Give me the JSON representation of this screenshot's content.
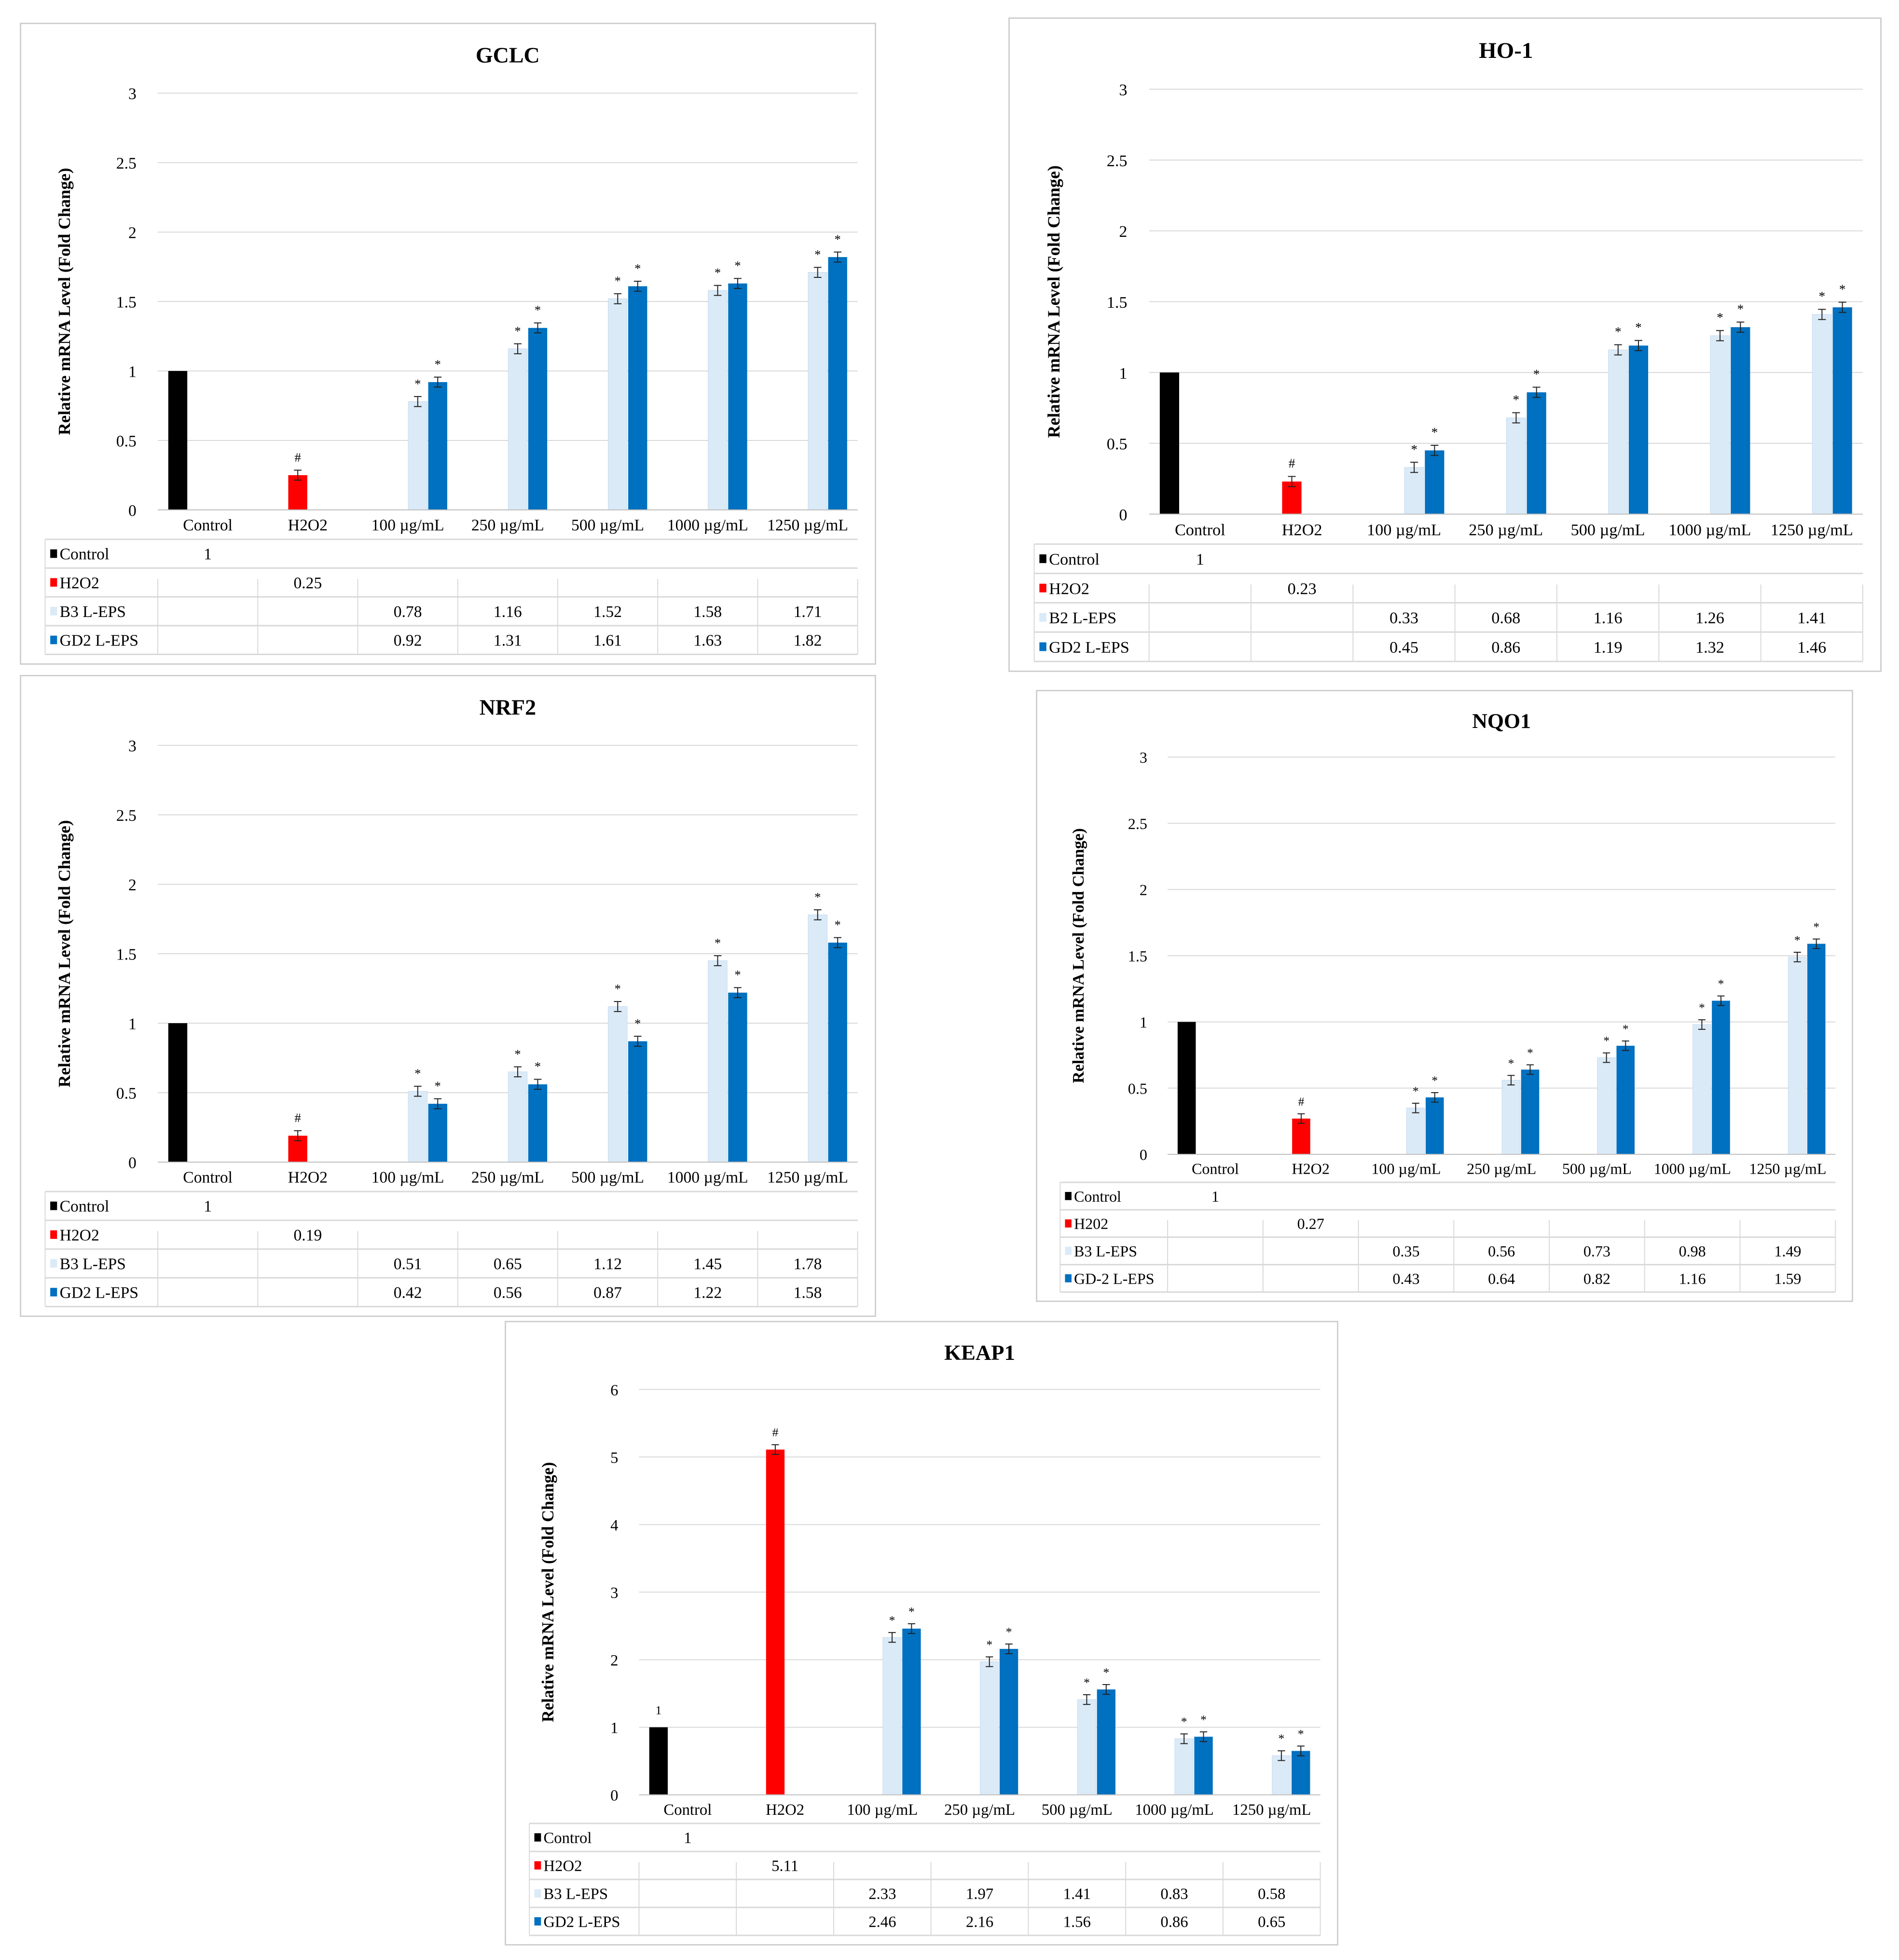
{
  "colors": {
    "control": "#000000",
    "h2o2": "#ff0000",
    "b3": "#dbeaf7",
    "gd2": "#0070c0",
    "grid": "#d9d9d9"
  },
  "chart_data": [
    {
      "type": "bar",
      "title": "GCLC",
      "ylabel": "Relative mRNA Level (Fold Change)",
      "ylim": [
        0,
        3
      ],
      "yticks": [
        "0",
        "0.5",
        "1",
        "1.5",
        "2",
        "2.5",
        "3"
      ],
      "grid": true,
      "legend": "table-bottom",
      "categories": [
        "Control",
        "H2O2",
        "100 µg/mL",
        "250 µg/mL",
        "500 µg/mL",
        "1000 µg/mL",
        "1250 µg/mL"
      ],
      "series": [
        {
          "name": "Control",
          "color": "#000000",
          "values": [
            1,
            null,
            null,
            null,
            null,
            null,
            null
          ],
          "labels": [
            "1",
            "",
            "",
            "",
            "",
            "",
            ""
          ],
          "marks": [
            "",
            "",
            "",
            "",
            "",
            "",
            ""
          ]
        },
        {
          "name": "H2O2",
          "color": "#ff0000",
          "values": [
            null,
            0.25,
            null,
            null,
            null,
            null,
            null
          ],
          "labels": [
            "",
            "0.25",
            "",
            "",
            "",
            "",
            ""
          ],
          "marks": [
            "",
            "#",
            "",
            "",
            "",
            "",
            ""
          ]
        },
        {
          "name": "B3 L-EPS",
          "color": "#dbeaf7",
          "values": [
            null,
            null,
            0.78,
            1.16,
            1.52,
            1.58,
            1.71
          ],
          "labels": [
            "",
            "",
            "0.78",
            "1.16",
            "1.52",
            "1.58",
            "1.71"
          ],
          "marks": [
            "",
            "",
            "*",
            "*",
            "*",
            "*",
            "*"
          ]
        },
        {
          "name": "GD2 L-EPS",
          "color": "#0070c0",
          "values": [
            null,
            null,
            0.92,
            1.31,
            1.61,
            1.63,
            1.82
          ],
          "labels": [
            "",
            "",
            "0.92",
            "1.31",
            "1.61",
            "1.63",
            "1.82"
          ],
          "marks": [
            "",
            "",
            "*",
            "*",
            "*",
            "*",
            "*"
          ]
        }
      ]
    },
    {
      "type": "bar",
      "title": "HO-1",
      "ylabel": "Relative mRNA Level (Fold Change)",
      "ylim": [
        0,
        3
      ],
      "yticks": [
        "0",
        "0.5",
        "1",
        "1.5",
        "2",
        "2.5",
        "3"
      ],
      "grid": true,
      "legend": "table-bottom",
      "categories": [
        "Control",
        "H2O2",
        "100 µg/mL",
        "250 µg/mL",
        "500 µg/mL",
        "1000 µg/mL",
        "1250 µg/mL"
      ],
      "series": [
        {
          "name": "Control",
          "color": "#000000",
          "values": [
            1,
            null,
            null,
            null,
            null,
            null,
            null
          ],
          "labels": [
            "1",
            "",
            "",
            "",
            "",
            "",
            ""
          ],
          "marks": [
            "",
            "",
            "",
            "",
            "",
            "",
            ""
          ]
        },
        {
          "name": "H2O2",
          "color": "#ff0000",
          "values": [
            null,
            0.23,
            null,
            null,
            null,
            null,
            null
          ],
          "labels": [
            "",
            "0.23",
            "",
            "",
            "",
            "",
            ""
          ],
          "marks": [
            "",
            "#",
            "",
            "",
            "",
            "",
            ""
          ]
        },
        {
          "name": "B2 L-EPS",
          "color": "#dbeaf7",
          "values": [
            null,
            null,
            0.33,
            0.68,
            1.16,
            1.26,
            1.41
          ],
          "labels": [
            "",
            "",
            "0.33",
            "0.68",
            "1.16",
            "1.26",
            "1.41"
          ],
          "marks": [
            "",
            "",
            "*",
            "*",
            "*",
            "*",
            "*"
          ]
        },
        {
          "name": "GD2 L-EPS",
          "color": "#0070c0",
          "values": [
            null,
            null,
            0.45,
            0.86,
            1.19,
            1.32,
            1.46
          ],
          "labels": [
            "",
            "",
            "0.45",
            "0.86",
            "1.19",
            "1.32",
            "1.46"
          ],
          "marks": [
            "",
            "",
            "*",
            "*",
            "*",
            "*",
            "*"
          ]
        }
      ]
    },
    {
      "type": "bar",
      "title": "NRF2",
      "ylabel": "Relative mRNA Level (Fold Change)",
      "ylim": [
        0,
        3
      ],
      "yticks": [
        "0",
        "0.5",
        "1",
        "1.5",
        "2",
        "2.5",
        "3"
      ],
      "grid": true,
      "legend": "table-bottom",
      "categories": [
        "Control",
        "H2O2",
        "100 µg/mL",
        "250 µg/mL",
        "500 µg/mL",
        "1000 µg/mL",
        "1250 µg/mL"
      ],
      "series": [
        {
          "name": "Control",
          "color": "#000000",
          "values": [
            1,
            null,
            null,
            null,
            null,
            null,
            null
          ],
          "labels": [
            "1",
            "",
            "",
            "",
            "",
            "",
            ""
          ],
          "marks": [
            "",
            "",
            "",
            "",
            "",
            "",
            ""
          ]
        },
        {
          "name": "H2O2",
          "color": "#ff0000",
          "values": [
            null,
            0.19,
            null,
            null,
            null,
            null,
            null
          ],
          "labels": [
            "",
            "0.19",
            "",
            "",
            "",
            "",
            ""
          ],
          "marks": [
            "",
            "#",
            "",
            "",
            "",
            "",
            ""
          ]
        },
        {
          "name": "B3 L-EPS",
          "color": "#dbeaf7",
          "values": [
            null,
            null,
            0.51,
            0.65,
            1.12,
            1.45,
            1.78
          ],
          "labels": [
            "",
            "",
            "0.51",
            "0.65",
            "1.12",
            "1.45",
            "1.78"
          ],
          "marks": [
            "",
            "",
            "*",
            "*",
            "*",
            "*",
            "*"
          ]
        },
        {
          "name": "GD2 L-EPS",
          "color": "#0070c0",
          "values": [
            null,
            null,
            0.42,
            0.56,
            0.87,
            1.22,
            1.58
          ],
          "labels": [
            "",
            "",
            "0.42",
            "0.56",
            "0.87",
            "1.22",
            "1.58"
          ],
          "marks": [
            "",
            "",
            "*",
            "*",
            "*",
            "*",
            "*"
          ]
        }
      ]
    },
    {
      "type": "bar",
      "title": "NQO1",
      "ylabel": "Relative mRNA Level (Fold Change)",
      "ylim": [
        0,
        3
      ],
      "yticks": [
        "0",
        "0.5",
        "1",
        "1.5",
        "2",
        "2.5",
        "3"
      ],
      "grid": true,
      "legend": "table-bottom",
      "categories": [
        "Control",
        "H2O2",
        "100 µg/mL",
        "250 µg/mL",
        "500 µg/mL",
        "1000 µg/mL",
        "1250 µg/mL"
      ],
      "series": [
        {
          "name": "Control",
          "color": "#000000",
          "values": [
            1,
            null,
            null,
            null,
            null,
            null,
            null
          ],
          "labels": [
            "1",
            "",
            "",
            "",
            "",
            "",
            ""
          ],
          "marks": [
            "",
            "",
            "",
            "",
            "",
            "",
            ""
          ]
        },
        {
          "name": "H202",
          "color": "#ff0000",
          "values": [
            null,
            0.27,
            null,
            null,
            null,
            null,
            null
          ],
          "labels": [
            "",
            "0.27",
            "",
            "",
            "",
            "",
            ""
          ],
          "marks": [
            "",
            "#",
            "",
            "",
            "",
            "",
            ""
          ]
        },
        {
          "name": "B3 L-EPS",
          "color": "#dbeaf7",
          "values": [
            null,
            null,
            0.35,
            0.56,
            0.73,
            0.98,
            1.49
          ],
          "labels": [
            "",
            "",
            "0.35",
            "0.56",
            "0.73",
            "0.98",
            "1.49"
          ],
          "marks": [
            "",
            "",
            "*",
            "*",
            "*",
            "*",
            "*"
          ]
        },
        {
          "name": "GD-2 L-EPS",
          "color": "#0070c0",
          "values": [
            null,
            null,
            0.43,
            0.64,
            0.82,
            1.16,
            1.59
          ],
          "labels": [
            "",
            "",
            "0.43",
            "0.64",
            "0.82",
            "1.16",
            "1.59"
          ],
          "marks": [
            "",
            "",
            "*",
            "*",
            "*",
            "*",
            "*"
          ]
        }
      ]
    },
    {
      "type": "bar",
      "title": "KEAP1",
      "ylabel": "Relative mRNA Level (Fold Change)",
      "ylim": [
        0,
        6
      ],
      "yticks": [
        "0",
        "1",
        "2",
        "3",
        "4",
        "5",
        "6"
      ],
      "grid": true,
      "legend": "table-bottom",
      "categories": [
        "Control",
        "H2O2",
        "100 µg/mL",
        "250 µg/mL",
        "500 µg/mL",
        "1000 µg/mL",
        "1250 µg/mL"
      ],
      "series": [
        {
          "name": "Control",
          "color": "#000000",
          "values": [
            1,
            null,
            null,
            null,
            null,
            null,
            null
          ],
          "labels": [
            "1",
            "",
            "",
            "",
            "",
            "",
            ""
          ],
          "marks": [
            "1",
            "",
            "",
            "",
            "",
            "",
            ""
          ]
        },
        {
          "name": "H2O2",
          "color": "#ff0000",
          "values": [
            null,
            5.11,
            null,
            null,
            null,
            null,
            null
          ],
          "labels": [
            "",
            "5.11",
            "",
            "",
            "",
            "",
            ""
          ],
          "marks": [
            "",
            "#",
            "",
            "",
            "",
            "",
            ""
          ]
        },
        {
          "name": "B3 L-EPS",
          "color": "#dbeaf7",
          "values": [
            null,
            null,
            2.33,
            1.97,
            1.41,
            0.83,
            0.58
          ],
          "labels": [
            "",
            "",
            "2.33",
            "1.97",
            "1.41",
            "0.83",
            "0.58"
          ],
          "marks": [
            "",
            "",
            "*",
            "*",
            "*",
            "*",
            "*"
          ]
        },
        {
          "name": "GD2 L-EPS",
          "color": "#0070c0",
          "values": [
            null,
            null,
            2.46,
            2.16,
            1.56,
            0.86,
            0.65
          ],
          "labels": [
            "",
            "",
            "2.46",
            "2.16",
            "1.56",
            "0.86",
            "0.65"
          ],
          "marks": [
            "",
            "",
            "*",
            "*",
            "*",
            "*",
            "*"
          ]
        }
      ]
    }
  ]
}
